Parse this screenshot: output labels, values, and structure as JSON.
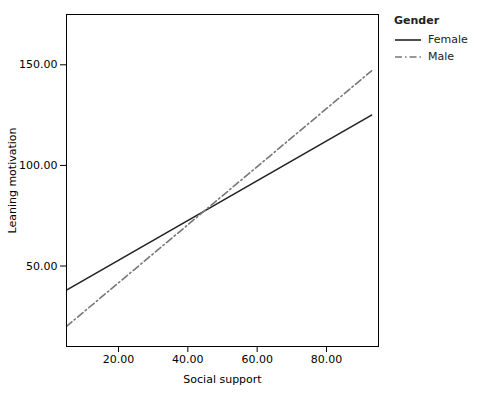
{
  "chart_data": {
    "type": "line",
    "xlabel": "Social support",
    "ylabel": "Leaning motivation",
    "legend_title": "Gender",
    "legend": "right",
    "grid": false,
    "xlim": [
      5,
      95
    ],
    "ylim": [
      10,
      175
    ],
    "xticks": [
      {
        "value": 20.0,
        "label": "20.00"
      },
      {
        "value": 40.0,
        "label": "40.00"
      },
      {
        "value": 60.0,
        "label": "60.00"
      },
      {
        "value": 80.0,
        "label": "80.00"
      }
    ],
    "yticks": [
      {
        "value": 50.0,
        "label": "50.00"
      },
      {
        "value": 100.0,
        "label": "100.00"
      },
      {
        "value": 150.0,
        "label": "150.00"
      }
    ],
    "x": [
      5,
      93
    ],
    "series": [
      {
        "name": "Female",
        "color": "#222222",
        "line_style": "solid",
        "values": [
          38,
          125
        ]
      },
      {
        "name": "Male",
        "color": "#777777",
        "line_style": "dashdot",
        "values": [
          20,
          147
        ]
      }
    ]
  }
}
